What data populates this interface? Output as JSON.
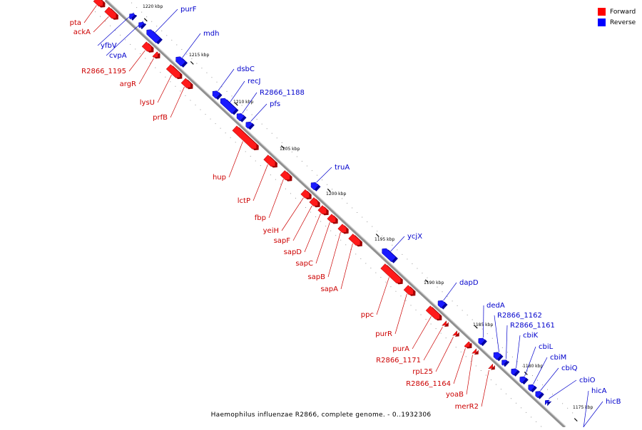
{
  "legend": [
    {
      "label": "Forward",
      "color": "#ff0000"
    },
    {
      "label": "Reverse",
      "color": "#0000ff"
    }
  ],
  "caption": "Haemophilus influenzae R2866, complete genome. - 0..1932306",
  "colors": {
    "forward_label": "#cc0000",
    "reverse_label": "#0000cc",
    "axis": "#a0a0a0"
  },
  "ticks": [
    "1220 kbp",
    "1215 kbp",
    "1210 kbp",
    "1205 kbp",
    "1200 kbp",
    "1195 kbp",
    "1190 kbp",
    "1185 kbp",
    "1180 kbp",
    "1175 kbp"
  ],
  "genes": [
    {
      "name": "pta",
      "strand": "forward"
    },
    {
      "name": "ackA",
      "strand": "forward"
    },
    {
      "name": "yfbV",
      "strand": "reverse"
    },
    {
      "name": "cvpA",
      "strand": "reverse"
    },
    {
      "name": "purF",
      "strand": "reverse"
    },
    {
      "name": "mdh",
      "strand": "reverse"
    },
    {
      "name": "R2866_1195",
      "strand": "forward"
    },
    {
      "name": "argR",
      "strand": "forward"
    },
    {
      "name": "lysU",
      "strand": "forward"
    },
    {
      "name": "prfB",
      "strand": "forward"
    },
    {
      "name": "dsbC",
      "strand": "reverse"
    },
    {
      "name": "recJ",
      "strand": "reverse"
    },
    {
      "name": "R2866_1188",
      "strand": "reverse"
    },
    {
      "name": "pfs",
      "strand": "reverse"
    },
    {
      "name": "hup",
      "strand": "forward"
    },
    {
      "name": "lctP",
      "strand": "forward"
    },
    {
      "name": "fbp",
      "strand": "forward"
    },
    {
      "name": "truA",
      "strand": "reverse"
    },
    {
      "name": "yeiH",
      "strand": "forward"
    },
    {
      "name": "sapF",
      "strand": "forward"
    },
    {
      "name": "sapD",
      "strand": "forward"
    },
    {
      "name": "sapC",
      "strand": "forward"
    },
    {
      "name": "sapB",
      "strand": "forward"
    },
    {
      "name": "sapA",
      "strand": "forward"
    },
    {
      "name": "ycjX",
      "strand": "reverse"
    },
    {
      "name": "ppc",
      "strand": "forward"
    },
    {
      "name": "dapD",
      "strand": "reverse"
    },
    {
      "name": "purR",
      "strand": "forward"
    },
    {
      "name": "dedA",
      "strand": "reverse"
    },
    {
      "name": "R2866_1162",
      "strand": "reverse"
    },
    {
      "name": "R2866_1161",
      "strand": "reverse"
    },
    {
      "name": "purA",
      "strand": "forward"
    },
    {
      "name": "cbiK",
      "strand": "reverse"
    },
    {
      "name": "R2866_1171",
      "strand": "forward"
    },
    {
      "name": "cbiL",
      "strand": "reverse"
    },
    {
      "name": "cbiM",
      "strand": "reverse"
    },
    {
      "name": "rpL25",
      "strand": "forward"
    },
    {
      "name": "cbiQ",
      "strand": "reverse"
    },
    {
      "name": "R2866_1164",
      "strand": "forward"
    },
    {
      "name": "cbiO",
      "strand": "reverse"
    },
    {
      "name": "yoaB",
      "strand": "forward"
    },
    {
      "name": "hicA",
      "strand": "reverse"
    },
    {
      "name": "merR2",
      "strand": "forward"
    },
    {
      "name": "hicB",
      "strand": "reverse"
    }
  ]
}
